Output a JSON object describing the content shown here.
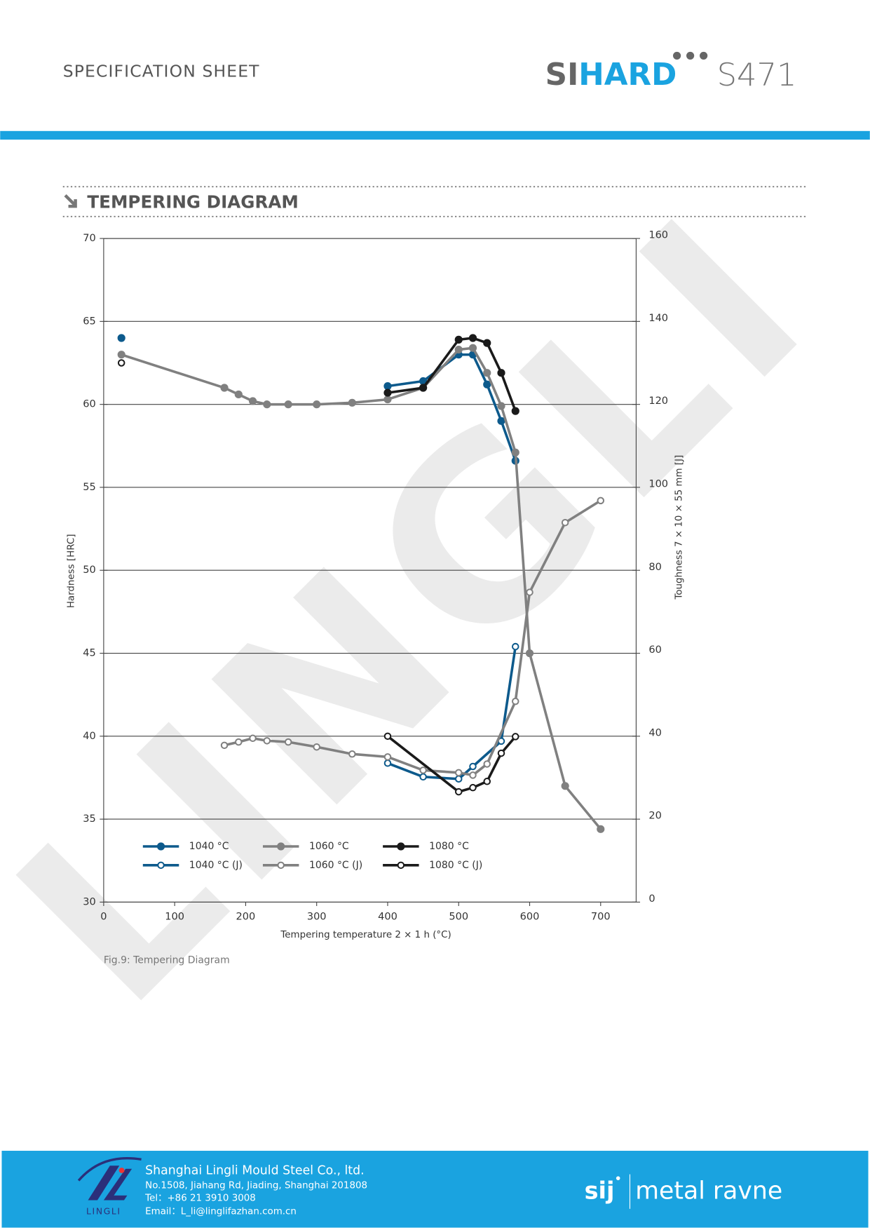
{
  "header": {
    "title": "SPECIFICATION SHEET",
    "logo_si": "SI",
    "logo_hard": "HARD",
    "grade": "S471"
  },
  "section_title": "TEMPERING DIAGRAM",
  "watermark": "LINGLI",
  "chart_data": {
    "type": "line",
    "x_label": "Tempering temperature 2 × 1 h (°C)",
    "y_label": "Hardness [HRC]",
    "y2_label": "Toughness 7 × 10 × 55 mm [J]",
    "xlim": [
      0,
      750
    ],
    "xticks": [
      0,
      100,
      200,
      300,
      400,
      500,
      600,
      700
    ],
    "ylim": [
      30,
      70
    ],
    "yticks": [
      30,
      35,
      40,
      45,
      50,
      55,
      60,
      65,
      70
    ],
    "y2lim": [
      0,
      160
    ],
    "y2ticks": [
      0,
      20,
      40,
      60,
      80,
      100,
      120,
      140,
      160
    ],
    "grid": true,
    "legend": "lower left",
    "series": [
      {
        "name": "1040 °C",
        "color": "#0d5a8c",
        "marker": "filled",
        "x": [
          25,
          null,
          400,
          450,
          500,
          520,
          540,
          560,
          580
        ],
        "values": [
          64.0,
          null,
          61.1,
          61.4,
          63.0,
          63.0,
          61.2,
          59.0,
          56.6
        ]
      },
      {
        "name": "1040 °C (J)",
        "color": "#0d5a8c",
        "marker": "open",
        "axis": "y2",
        "x": [
          400,
          450,
          500,
          520,
          560,
          580
        ],
        "values": [
          33.5,
          30.2,
          29.7,
          32.7,
          38.8,
          61.6
        ]
      },
      {
        "name": "1060 °C",
        "color": "#808080",
        "marker": "filled",
        "x": [
          25,
          170,
          190,
          210,
          230,
          260,
          300,
          350,
          400,
          450,
          500,
          520,
          540,
          560,
          580,
          600,
          650,
          700
        ],
        "values": [
          63.0,
          61.0,
          60.6,
          60.2,
          60.0,
          60.0,
          60.0,
          60.1,
          60.3,
          61.0,
          63.3,
          63.4,
          61.9,
          59.9,
          57.1,
          45.0,
          37.0,
          34.4
        ]
      },
      {
        "name": "1060 °C (J)",
        "color": "#808080",
        "marker": "open",
        "axis": "y2",
        "x": [
          170,
          190,
          210,
          230,
          260,
          300,
          350,
          400,
          450,
          500,
          520,
          540,
          580,
          600,
          650,
          700
        ],
        "values": [
          37.8,
          38.6,
          39.5,
          38.9,
          38.6,
          37.4,
          35.7,
          35.0,
          31.8,
          31.2,
          30.6,
          33.3,
          48.4,
          74.7,
          91.5,
          96.8
        ]
      },
      {
        "name": "1080 °C",
        "color": "#1a1a1a",
        "marker": "filled",
        "x": [
          400,
          450,
          500,
          520,
          540,
          560,
          580
        ],
        "values": [
          60.7,
          61.0,
          63.9,
          64.0,
          63.7,
          61.9,
          59.6
        ]
      },
      {
        "name": "1080 °C (J)",
        "color": "#1a1a1a",
        "marker": "open",
        "axis": "y2",
        "x": [
          25,
          null,
          400,
          500,
          520,
          540,
          560,
          580
        ],
        "values": [
          130,
          null,
          40,
          26.6,
          27.6,
          29.1,
          35.9,
          39.9
        ]
      }
    ]
  },
  "caption": "Fig.9: Tempering Diagram",
  "footer": {
    "logo_text": "LINGLI",
    "company": "Shanghai Lingli Mould Steel Co., ltd.",
    "address": "No.1508, Jiahang Rd, Jiading, Shanghai 201808",
    "tel": "Tel：+86 21 3910 3008",
    "email": "Email：L_li@linglifazhan.com.cn",
    "brand_sij": "sij",
    "brand_name": "metal ravne"
  }
}
